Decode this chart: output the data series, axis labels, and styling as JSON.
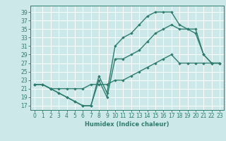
{
  "title": "",
  "xlabel": "Humidex (Indice chaleur)",
  "bg_color": "#cce8e8",
  "grid_color": "#ffffff",
  "line_color": "#2e7d6e",
  "marker": "D",
  "markersize": 2.2,
  "linewidth": 1.0,
  "xlim": [
    -0.5,
    23.5
  ],
  "ylim": [
    16,
    40.5
  ],
  "xticks": [
    0,
    1,
    2,
    3,
    4,
    5,
    6,
    7,
    8,
    9,
    10,
    11,
    12,
    13,
    14,
    15,
    16,
    17,
    18,
    19,
    20,
    21,
    22,
    23
  ],
  "yticks": [
    17,
    19,
    21,
    23,
    25,
    27,
    29,
    31,
    33,
    35,
    37,
    39
  ],
  "line1_x": [
    0,
    1,
    2,
    3,
    4,
    5,
    6,
    7,
    8,
    9,
    10,
    11,
    12,
    13,
    14,
    15,
    16,
    17,
    18,
    19,
    20,
    21,
    22,
    23
  ],
  "line1_y": [
    22,
    22,
    21,
    20,
    19,
    18,
    17,
    17,
    24,
    20,
    31,
    33,
    34,
    36,
    38,
    39,
    39,
    39,
    36,
    35,
    34,
    29,
    27,
    27
  ],
  "line2_x": [
    0,
    1,
    2,
    3,
    4,
    5,
    6,
    7,
    8,
    9,
    10,
    11,
    12,
    13,
    14,
    15,
    16,
    17,
    18,
    19,
    20,
    21,
    22,
    23
  ],
  "line2_y": [
    22,
    22,
    21,
    20,
    19,
    18,
    17,
    17,
    23,
    19,
    28,
    28,
    29,
    30,
    32,
    34,
    35,
    36,
    35,
    35,
    35,
    29,
    27,
    27
  ],
  "line3_x": [
    0,
    1,
    2,
    3,
    4,
    5,
    6,
    7,
    8,
    9,
    10,
    11,
    12,
    13,
    14,
    15,
    16,
    17,
    18,
    19,
    20,
    21,
    22,
    23
  ],
  "line3_y": [
    22,
    22,
    21,
    21,
    21,
    21,
    21,
    22,
    22,
    22,
    23,
    23,
    24,
    25,
    26,
    27,
    28,
    29,
    27,
    27,
    27,
    27,
    27,
    27
  ],
  "tick_fontsize": 5.5,
  "xlabel_fontsize": 6.0
}
